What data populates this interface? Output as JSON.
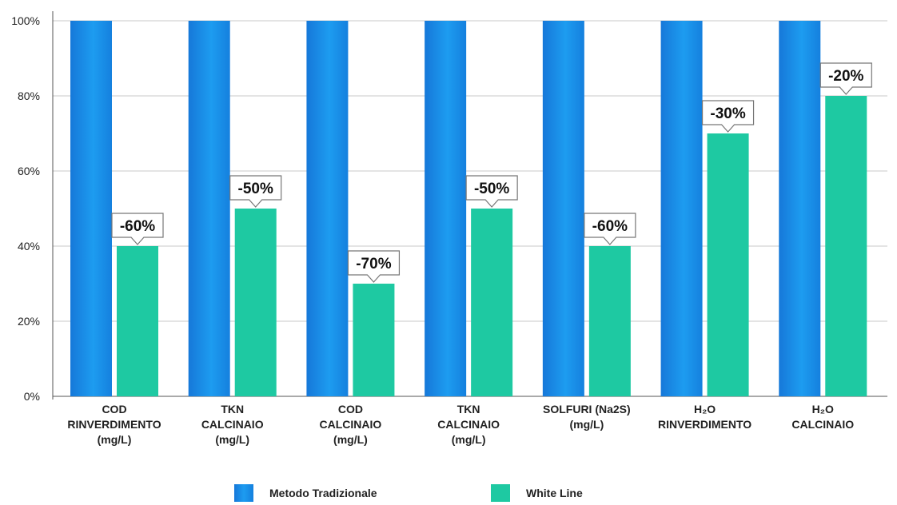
{
  "chart_data": {
    "type": "bar",
    "categories": [
      [
        "COD",
        "RINVERDIMENTO",
        "(mg/L)"
      ],
      [
        "TKN",
        "CALCINAIO",
        "(mg/L)"
      ],
      [
        "COD",
        "CALCINAIO",
        "(mg/L)"
      ],
      [
        "TKN",
        "CALCINAIO",
        "(mg/L)"
      ],
      [
        "SOLFURI (Na2S)",
        "(mg/L)"
      ],
      [
        "H₂O",
        "RINVERDIMENTO"
      ],
      [
        "H₂O",
        "CALCINAIO"
      ]
    ],
    "series": [
      {
        "name": "Metodo Tradizionale",
        "values": [
          100,
          100,
          100,
          100,
          100,
          100,
          100
        ]
      },
      {
        "name": "White Line",
        "values": [
          40,
          50,
          30,
          50,
          40,
          70,
          80
        ]
      }
    ],
    "annotations": [
      "-60%",
      "-50%",
      "-70%",
      "-50%",
      "-60%",
      "-30%",
      "-20%"
    ],
    "ylim": [
      0,
      100
    ],
    "yticks": [
      0,
      20,
      40,
      60,
      80,
      100
    ],
    "ytick_labels": [
      "0%",
      "20%",
      "40%",
      "60%",
      "80%",
      "100%"
    ],
    "grid": true,
    "legend_position": "bottom",
    "colors": {
      "Metodo Tradizionale": "#1a8ee6",
      "White Line": "#1ec9a2",
      "grid": "#c8c8c8"
    }
  },
  "legend": {
    "items": [
      "Metodo Tradizionale",
      "White Line"
    ]
  }
}
